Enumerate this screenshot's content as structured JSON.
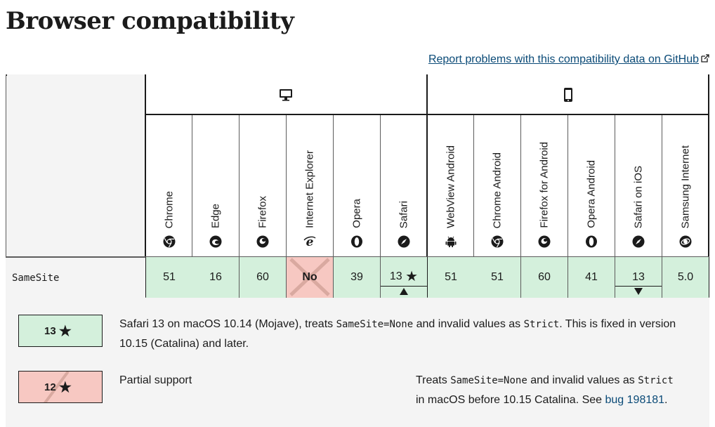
{
  "page": {
    "title": "Browser compatibility",
    "report_link": "Report problems with this compatibility data on GitHub"
  },
  "platforms": [
    {
      "name": "desktop",
      "icon": "desktop-icon"
    },
    {
      "name": "mobile",
      "icon": "mobile-icon"
    }
  ],
  "browsers": [
    {
      "name": "Chrome",
      "icon": "chrome-icon"
    },
    {
      "name": "Edge",
      "icon": "edge-icon"
    },
    {
      "name": "Firefox",
      "icon": "firefox-icon"
    },
    {
      "name": "Internet Explorer",
      "icon": "internet-explorer-icon"
    },
    {
      "name": "Opera",
      "icon": "opera-icon"
    },
    {
      "name": "Safari",
      "icon": "safari-icon"
    },
    {
      "name": "WebView Android",
      "icon": "android-icon"
    },
    {
      "name": "Chrome Android",
      "icon": "chrome-icon"
    },
    {
      "name": "Firefox for Android",
      "icon": "firefox-icon"
    },
    {
      "name": "Opera Android",
      "icon": "opera-icon"
    },
    {
      "name": "Safari on iOS",
      "icon": "safari-icon"
    },
    {
      "name": "Samsung Internet",
      "icon": "samsung-internet-icon"
    }
  ],
  "feature": {
    "name": "SameSite",
    "support": [
      "51",
      "16",
      "60",
      "No",
      "39",
      "13",
      "51",
      "51",
      "60",
      "41",
      "13",
      "5.0"
    ]
  },
  "colors": {
    "supported": "#d4f0dc",
    "unsupported": "#f7c8c2",
    "panel": "#f4f4f4",
    "link": "#0a4a77"
  },
  "notes": {
    "note1": {
      "version": "13",
      "line1_a": "Safari 13 on macOS 10.14 (Mojave), treats ",
      "line1_code1": "SameSite=None",
      "line1_b": " and invalid values as ",
      "line1_code2": "Strict",
      "line1_c": ". This is fixed in version",
      "line2": "10.15 (Catalina) and later."
    },
    "note2": {
      "version": "12",
      "label": "Partial support",
      "line1_a": "Treats ",
      "line1_code1": "SameSite=None",
      "line1_b": " and invalid values as ",
      "line1_code2": "Strict",
      "line2_a": "in macOS before 10.15 Catalina. See ",
      "line2_link": "bug 198181",
      "line2_b": "."
    }
  }
}
